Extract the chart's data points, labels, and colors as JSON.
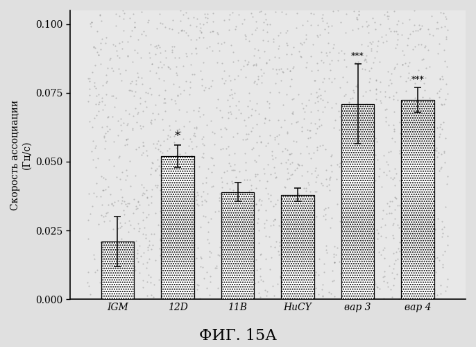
{
  "categories": [
    "IGM",
    "12D",
    "11B",
    "HuCY",
    "вар 3",
    "вар 4"
  ],
  "values": [
    0.021,
    0.052,
    0.039,
    0.038,
    0.071,
    0.0725
  ],
  "errors": [
    0.009,
    0.004,
    0.0035,
    0.0025,
    0.0145,
    0.0045
  ],
  "significance": [
    "",
    "*",
    "",
    "",
    "***",
    "***"
  ],
  "ylim": [
    0.0,
    0.105
  ],
  "yticks": [
    0.0,
    0.025,
    0.05,
    0.075,
    0.1
  ],
  "ylabel_line1": "Скорость ассоциации",
  "ylabel_line2": "(Гц/с)",
  "title": "ФИГ. 15А",
  "bar_color": "#d0d0d0",
  "background_color": "#e8e8e8",
  "fig_width": 6.86,
  "fig_height": 5.0,
  "dpi": 100
}
